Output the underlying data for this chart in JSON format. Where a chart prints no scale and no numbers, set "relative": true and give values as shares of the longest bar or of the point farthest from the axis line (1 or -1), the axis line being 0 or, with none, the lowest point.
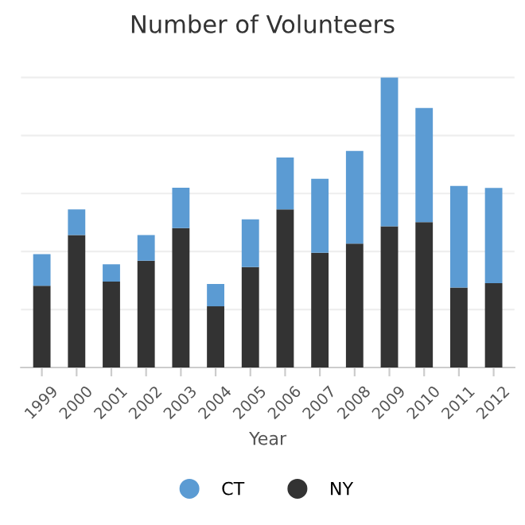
{
  "chart_data": {
    "type": "bar",
    "title": "Number of Volunteers",
    "xlabel": "Year",
    "relative": true,
    "stacked": true,
    "grid": "y",
    "legend": "bottom",
    "categories": [
      "1999",
      "2000",
      "2001",
      "2002",
      "2003",
      "2004",
      "2005",
      "2006",
      "2007",
      "2008",
      "2009",
      "2010",
      "2011",
      "2012"
    ],
    "series": [
      {
        "name": "NY",
        "color": "#333333",
        "values": [
          0.282,
          0.457,
          0.296,
          0.368,
          0.481,
          0.211,
          0.346,
          0.545,
          0.396,
          0.427,
          0.487,
          0.501,
          0.276,
          0.291
        ]
      },
      {
        "name": "CT",
        "color": "#5b9bd3",
        "values": [
          0.109,
          0.088,
          0.06,
          0.089,
          0.139,
          0.077,
          0.165,
          0.179,
          0.255,
          0.32,
          0.513,
          0.394,
          0.35,
          0.328
        ]
      }
    ]
  }
}
